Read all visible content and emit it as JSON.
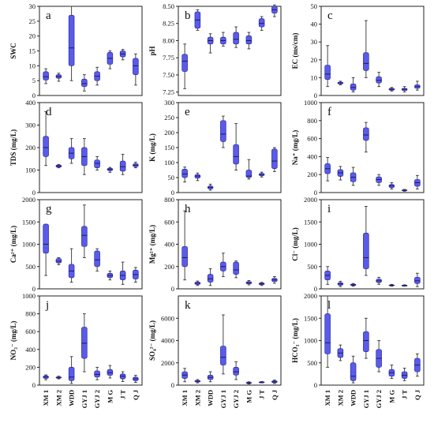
{
  "figure": {
    "box_color": "#5b5bea",
    "box_edge_color": "#2a2a9e",
    "median_color": "#1a1a60",
    "whisker_color": "#333333",
    "axis_color": "#222222"
  },
  "chart_data": [
    {
      "type": "box",
      "letter": "a",
      "ylabel": "SWC",
      "ylim": [
        0,
        30
      ],
      "yticks": [
        0,
        5,
        10,
        15,
        20,
        25,
        30
      ],
      "categories": [
        "XM 1",
        "XM 2",
        "WDD",
        "GYJ 1",
        "GYJ 2",
        "M G",
        "J T",
        "Q J"
      ],
      "boxes": [
        {
          "min": 4,
          "q1": 5.2,
          "median": 6.3,
          "q3": 8,
          "max": 9
        },
        {
          "min": 4.8,
          "q1": 5.8,
          "median": 6.4,
          "q3": 7,
          "max": 7.5
        },
        {
          "min": 5,
          "q1": 10,
          "median": 16,
          "q3": 27,
          "max": 30
        },
        {
          "min": 1.5,
          "q1": 3,
          "median": 4,
          "q3": 5.5,
          "max": 7
        },
        {
          "min": 3.5,
          "q1": 5,
          "median": 6.5,
          "q3": 8,
          "max": 9.5
        },
        {
          "min": 9,
          "q1": 10.5,
          "median": 12.5,
          "q3": 14.5,
          "max": 15
        },
        {
          "min": 12,
          "q1": 13,
          "median": 14,
          "q3": 15,
          "max": 15.5
        },
        {
          "min": 3.5,
          "q1": 7,
          "median": 10,
          "q3": 12.5,
          "max": 14
        }
      ]
    },
    {
      "type": "box",
      "letter": "b",
      "ylabel": "pH",
      "ylim": [
        7.2,
        8.5
      ],
      "yticks": [
        7.25,
        7.5,
        7.75,
        8.0,
        8.25,
        8.5
      ],
      "tick_labels": [
        "7.25",
        "7.50",
        "7.75",
        "8.00",
        "8.25",
        "8.50"
      ],
      "categories": [
        "XM 1",
        "XM 2",
        "WDD",
        "GYJ 1",
        "GYJ 2",
        "M G",
        "J T",
        "Q J"
      ],
      "boxes": [
        {
          "min": 7.3,
          "q1": 7.55,
          "median": 7.7,
          "q3": 7.8,
          "max": 7.95
        },
        {
          "min": 8.15,
          "q1": 8.18,
          "median": 8.3,
          "q3": 8.42,
          "max": 8.45
        },
        {
          "min": 7.82,
          "q1": 7.95,
          "median": 8.0,
          "q3": 8.05,
          "max": 8.1
        },
        {
          "min": 7.92,
          "q1": 7.95,
          "median": 8.0,
          "q3": 8.05,
          "max": 8.12
        },
        {
          "min": 7.9,
          "q1": 7.95,
          "median": 8.02,
          "q3": 8.12,
          "max": 8.2
        },
        {
          "min": 7.88,
          "q1": 7.95,
          "median": 8.0,
          "q3": 8.07,
          "max": 8.12
        },
        {
          "min": 8.15,
          "q1": 8.2,
          "median": 8.25,
          "q3": 8.32,
          "max": 8.35
        },
        {
          "min": 8.35,
          "q1": 8.4,
          "median": 8.45,
          "q3": 8.5,
          "max": 8.52
        }
      ]
    },
    {
      "type": "box",
      "letter": "c",
      "ylabel": "EC (ms/cm)",
      "ylim": [
        0,
        50
      ],
      "yticks": [
        0,
        10,
        20,
        30,
        40,
        50
      ],
      "categories": [
        "XM 1",
        "XM 2",
        "WDD",
        "GYJ 1",
        "GYJ 2",
        "M G",
        "J T",
        "Q J"
      ],
      "boxes": [
        {
          "min": 5,
          "q1": 9,
          "median": 12,
          "q3": 17,
          "max": 28
        },
        {
          "min": 6,
          "q1": 6.5,
          "median": 7,
          "q3": 7.5,
          "max": 8
        },
        {
          "min": 2,
          "q1": 3,
          "median": 4.5,
          "q3": 6.5,
          "max": 10
        },
        {
          "min": 10,
          "q1": 14,
          "median": 18,
          "q3": 24,
          "max": 42
        },
        {
          "min": 5,
          "q1": 7,
          "median": 8.5,
          "q3": 10.5,
          "max": 13
        },
        {
          "min": 2.5,
          "q1": 3,
          "median": 3.5,
          "q3": 4,
          "max": 4.5
        },
        {
          "min": 2,
          "q1": 2.8,
          "median": 3.5,
          "q3": 4,
          "max": 5
        },
        {
          "min": 3,
          "q1": 4,
          "median": 5,
          "q3": 6,
          "max": 8
        }
      ]
    },
    {
      "type": "box",
      "letter": "d",
      "ylabel": "TDS (mg/L)",
      "ylim": [
        0,
        400
      ],
      "yticks": [
        0,
        100,
        200,
        300,
        400
      ],
      "categories": [
        "XM 1",
        "XM 2",
        "WDD",
        "GYJ 1",
        "GYJ 2",
        "M G",
        "J T",
        "Q J"
      ],
      "boxes": [
        {
          "min": 120,
          "q1": 160,
          "median": 200,
          "q3": 250,
          "max": 360
        },
        {
          "min": 110,
          "q1": 113,
          "median": 118,
          "q3": 122,
          "max": 125
        },
        {
          "min": 130,
          "q1": 150,
          "median": 175,
          "q3": 200,
          "max": 240
        },
        {
          "min": 80,
          "q1": 120,
          "median": 160,
          "q3": 200,
          "max": 240
        },
        {
          "min": 100,
          "q1": 110,
          "median": 130,
          "q3": 145,
          "max": 160
        },
        {
          "min": 90,
          "q1": 97,
          "median": 103,
          "q3": 108,
          "max": 112
        },
        {
          "min": 80,
          "q1": 95,
          "median": 115,
          "q3": 140,
          "max": 170
        },
        {
          "min": 110,
          "q1": 115,
          "median": 122,
          "q3": 128,
          "max": 135
        }
      ]
    },
    {
      "type": "box",
      "letter": "e",
      "ylabel": "K (mg/L)",
      "ylim": [
        0,
        300
      ],
      "yticks": [
        0,
        50,
        100,
        150,
        200,
        250,
        300
      ],
      "categories": [
        "XM 1",
        "XM 2",
        "WDD",
        "GYJ 1",
        "GYJ 2",
        "M G",
        "J T",
        "Q J"
      ],
      "boxes": [
        {
          "min": 35,
          "q1": 50,
          "median": 62,
          "q3": 78,
          "max": 85
        },
        {
          "min": 40,
          "q1": 48,
          "median": 55,
          "q3": 60,
          "max": 65
        },
        {
          "min": 8,
          "q1": 12,
          "median": 17,
          "q3": 22,
          "max": 28
        },
        {
          "min": 150,
          "q1": 170,
          "median": 195,
          "q3": 240,
          "max": 255
        },
        {
          "min": 75,
          "q1": 95,
          "median": 120,
          "q3": 160,
          "max": 230
        },
        {
          "min": 45,
          "q1": 50,
          "median": 55,
          "q3": 75,
          "max": 110
        },
        {
          "min": 52,
          "q1": 56,
          "median": 60,
          "q3": 64,
          "max": 68
        },
        {
          "min": 70,
          "q1": 80,
          "median": 105,
          "q3": 145,
          "max": 150
        }
      ]
    },
    {
      "type": "box",
      "letter": "f",
      "ylabel": "Na⁺ (mg/L)",
      "ylim": [
        0,
        1000
      ],
      "yticks": [
        0,
        200,
        400,
        600,
        800,
        1000
      ],
      "categories": [
        "XM 1",
        "XM 2",
        "WDD",
        "GYJ 1",
        "GYJ 2",
        "M G",
        "J T",
        "Q J"
      ],
      "boxes": [
        {
          "min": 130,
          "q1": 210,
          "median": 265,
          "q3": 320,
          "max": 390
        },
        {
          "min": 140,
          "q1": 180,
          "median": 220,
          "q3": 255,
          "max": 290
        },
        {
          "min": 80,
          "q1": 120,
          "median": 170,
          "q3": 220,
          "max": 280
        },
        {
          "min": 450,
          "q1": 580,
          "median": 640,
          "q3": 720,
          "max": 780
        },
        {
          "min": 80,
          "q1": 110,
          "median": 145,
          "q3": 175,
          "max": 200
        },
        {
          "min": 40,
          "q1": 55,
          "median": 75,
          "q3": 90,
          "max": 110
        },
        {
          "min": 15,
          "q1": 20,
          "median": 25,
          "q3": 30,
          "max": 35
        },
        {
          "min": 40,
          "q1": 70,
          "median": 110,
          "q3": 145,
          "max": 190
        }
      ]
    },
    {
      "type": "box",
      "letter": "g",
      "ylabel": "Ca²⁺ (mg/L)",
      "ylim": [
        0,
        2000
      ],
      "yticks": [
        0,
        500,
        1000,
        1500,
        2000
      ],
      "categories": [
        "XM 1",
        "XM 2",
        "WDD",
        "GYJ 1",
        "GYJ 2",
        "M G",
        "J T",
        "Q J"
      ],
      "boxes": [
        {
          "min": 300,
          "q1": 800,
          "median": 1000,
          "q3": 1450,
          "max": 1450
        },
        {
          "min": 540,
          "q1": 580,
          "median": 620,
          "q3": 680,
          "max": 700
        },
        {
          "min": 150,
          "q1": 250,
          "median": 400,
          "q3": 550,
          "max": 900
        },
        {
          "min": 700,
          "q1": 950,
          "median": 1200,
          "q3": 1400,
          "max": 1880
        },
        {
          "min": 400,
          "q1": 500,
          "median": 650,
          "q3": 850,
          "max": 900
        },
        {
          "min": 200,
          "q1": 250,
          "median": 300,
          "q3": 350,
          "max": 400
        },
        {
          "min": 100,
          "q1": 200,
          "median": 300,
          "q3": 400,
          "max": 600
        },
        {
          "min": 150,
          "q1": 220,
          "median": 320,
          "q3": 420,
          "max": 480
        }
      ]
    },
    {
      "type": "box",
      "letter": "h",
      "ylabel": "Mg²⁺ (mg/L)",
      "ylim": [
        0,
        800
      ],
      "yticks": [
        0,
        200,
        400,
        600,
        800
      ],
      "categories": [
        "XM 1",
        "XM 2",
        "WDD",
        "GYJ 1",
        "GYJ 2",
        "M G",
        "J T",
        "Q J"
      ],
      "boxes": [
        {
          "min": 80,
          "q1": 200,
          "median": 280,
          "q3": 380,
          "max": 700
        },
        {
          "min": 30,
          "q1": 40,
          "median": 50,
          "q3": 60,
          "max": 70
        },
        {
          "min": 30,
          "q1": 60,
          "median": 90,
          "q3": 130,
          "max": 180
        },
        {
          "min": 110,
          "q1": 160,
          "median": 200,
          "q3": 240,
          "max": 320
        },
        {
          "min": 100,
          "q1": 130,
          "median": 170,
          "q3": 240,
          "max": 250
        },
        {
          "min": 35,
          "q1": 45,
          "median": 55,
          "q3": 65,
          "max": 75
        },
        {
          "min": 30,
          "q1": 38,
          "median": 45,
          "q3": 52,
          "max": 58
        },
        {
          "min": 50,
          "q1": 65,
          "median": 80,
          "q3": 95,
          "max": 110
        }
      ]
    },
    {
      "type": "box",
      "letter": "i",
      "ylabel": "Cl⁻ (mg/L)",
      "ylim": [
        0,
        2000
      ],
      "yticks": [
        0,
        500,
        1000,
        1500,
        2000
      ],
      "categories": [
        "XM 1",
        "XM 2",
        "WDD",
        "GYJ 1",
        "GYJ 2",
        "M G",
        "J T",
        "Q J"
      ],
      "boxes": [
        {
          "min": 100,
          "q1": 200,
          "median": 300,
          "q3": 400,
          "max": 500
        },
        {
          "min": 50,
          "q1": 80,
          "median": 110,
          "q3": 140,
          "max": 170
        },
        {
          "min": 60,
          "q1": 75,
          "median": 90,
          "q3": 105,
          "max": 120
        },
        {
          "min": 300,
          "q1": 450,
          "median": 700,
          "q3": 1250,
          "max": 1850
        },
        {
          "min": 100,
          "q1": 140,
          "median": 180,
          "q3": 220,
          "max": 260
        },
        {
          "min": 60,
          "q1": 70,
          "median": 80,
          "q3": 90,
          "max": 100
        },
        {
          "min": 60,
          "q1": 68,
          "median": 75,
          "q3": 82,
          "max": 90
        },
        {
          "min": 50,
          "q1": 120,
          "median": 180,
          "q3": 260,
          "max": 350
        }
      ]
    },
    {
      "type": "box",
      "letter": "j",
      "ylabel": "NO₃⁻ (mg/L)",
      "ylim": [
        0,
        1000
      ],
      "yticks": [
        0,
        200,
        400,
        600,
        800,
        1000
      ],
      "categories": [
        "XM 1",
        "XM 2",
        "WDD",
        "GYJ 1",
        "GYJ 2",
        "M G",
        "J T",
        "Q J"
      ],
      "boxes": [
        {
          "min": 60,
          "q1": 75,
          "median": 90,
          "q3": 105,
          "max": 115
        },
        {
          "min": 70,
          "q1": 78,
          "median": 85,
          "q3": 92,
          "max": 100
        },
        {
          "min": 20,
          "q1": 50,
          "median": 90,
          "q3": 200,
          "max": 320
        },
        {
          "min": 150,
          "q1": 300,
          "median": 470,
          "q3": 650,
          "max": 800
        },
        {
          "min": 60,
          "q1": 90,
          "median": 120,
          "q3": 160,
          "max": 200
        },
        {
          "min": 80,
          "q1": 110,
          "median": 140,
          "q3": 175,
          "max": 220
        },
        {
          "min": 40,
          "q1": 70,
          "median": 100,
          "q3": 125,
          "max": 150
        },
        {
          "min": 30,
          "q1": 50,
          "median": 70,
          "q3": 90,
          "max": 110
        }
      ]
    },
    {
      "type": "box",
      "letter": "k",
      "ylabel": "SO₄²⁻ (mg/L)",
      "ylim": [
        0,
        8000
      ],
      "yticks": [
        0,
        2000,
        4000,
        6000
      ],
      "categories": [
        "XM 1",
        "XM 2",
        "WDD",
        "GYJ 1",
        "GYJ 2",
        "M G",
        "J T",
        "Q J"
      ],
      "boxes": [
        {
          "min": 300,
          "q1": 600,
          "median": 900,
          "q3": 1200,
          "max": 1500
        },
        {
          "min": 200,
          "q1": 280,
          "median": 350,
          "q3": 420,
          "max": 500
        },
        {
          "min": 300,
          "q1": 500,
          "median": 700,
          "q3": 900,
          "max": 1200
        },
        {
          "min": 1000,
          "q1": 1800,
          "median": 2500,
          "q3": 3500,
          "max": 6300
        },
        {
          "min": 500,
          "q1": 900,
          "median": 1200,
          "q3": 1600,
          "max": 2100
        },
        {
          "min": 100,
          "q1": 150,
          "median": 200,
          "q3": 250,
          "max": 300
        },
        {
          "min": 200,
          "q1": 230,
          "median": 260,
          "q3": 290,
          "max": 320
        },
        {
          "min": 150,
          "q1": 220,
          "median": 300,
          "q3": 380,
          "max": 450
        }
      ]
    },
    {
      "type": "box",
      "letter": "l",
      "ylabel": "HCO₃⁻ (mg/L)",
      "ylim": [
        0,
        2000
      ],
      "yticks": [
        0,
        500,
        1000,
        1500,
        2000
      ],
      "categories": [
        "XM 1",
        "XM 2",
        "WDD",
        "GYJ 1",
        "GYJ 2",
        "M G",
        "J T",
        "Q J"
      ],
      "boxes": [
        {
          "min": 400,
          "q1": 700,
          "median": 950,
          "q3": 1600,
          "max": 2000
        },
        {
          "min": 550,
          "q1": 620,
          "median": 720,
          "q3": 820,
          "max": 900
        },
        {
          "min": 50,
          "q1": 100,
          "median": 200,
          "q3": 500,
          "max": 650
        },
        {
          "min": 600,
          "q1": 750,
          "median": 1000,
          "q3": 1200,
          "max": 1500
        },
        {
          "min": 300,
          "q1": 400,
          "median": 600,
          "q3": 800,
          "max": 1000
        },
        {
          "min": 150,
          "q1": 200,
          "median": 280,
          "q3": 350,
          "max": 450
        },
        {
          "min": 100,
          "q1": 150,
          "median": 220,
          "q3": 300,
          "max": 380
        },
        {
          "min": 200,
          "q1": 300,
          "median": 450,
          "q3": 600,
          "max": 700
        }
      ]
    }
  ]
}
